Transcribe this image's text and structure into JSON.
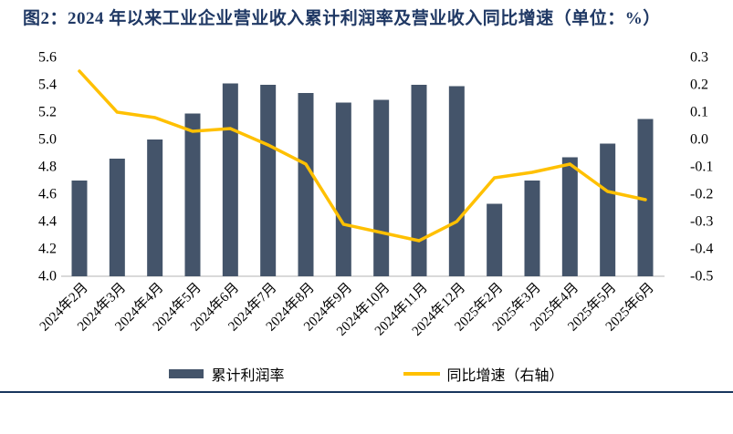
{
  "title": "图2：2024 年以来工业企业营业收入累计利润率及营业收入同比增速（单位：%）",
  "legend": {
    "bar_label": "累计利润率",
    "line_label": "同比增速（右轴）"
  },
  "colors": {
    "bar": "#44546A",
    "line": "#FFC000",
    "title_navy": "#1F3864",
    "axis_baseline": "#D9D9D9",
    "bottom_rule": "#17365D"
  },
  "chart_data": {
    "type": "combo-bar-line",
    "title": "2024 年以来工业企业营业收入累计利润率及营业收入同比增速",
    "unit": "%",
    "grid": false,
    "legend_position": "bottom",
    "categories": [
      "2024年2月",
      "2024年3月",
      "2024年4月",
      "2024年5月",
      "2024年6月",
      "2024年7月",
      "2024年8月",
      "2024年9月",
      "2024年10月",
      "2024年11月",
      "2024年12月",
      "2025年2月",
      "2025年3月",
      "2025年4月",
      "2025年5月",
      "2025年6月"
    ],
    "series": [
      {
        "name": "累计利润率",
        "type": "bar",
        "axis": "left",
        "color": "#44546A",
        "values": [
          4.7,
          4.86,
          5.0,
          5.19,
          5.41,
          5.4,
          5.34,
          5.27,
          5.29,
          5.4,
          5.39,
          4.53,
          4.7,
          4.87,
          4.97,
          5.15
        ]
      },
      {
        "name": "同比增速（右轴）",
        "type": "line",
        "axis": "right",
        "color": "#FFC000",
        "values": [
          0.25,
          0.1,
          0.08,
          0.03,
          0.04,
          -0.02,
          -0.09,
          -0.31,
          -0.34,
          -0.37,
          -0.3,
          -0.14,
          -0.12,
          -0.09,
          -0.19,
          -0.22
        ]
      }
    ],
    "left_axis": {
      "min": 4.0,
      "max": 5.6,
      "step": 0.2,
      "ticks": [
        "5.6",
        "5.4",
        "5.2",
        "5.0",
        "4.8",
        "4.6",
        "4.4",
        "4.2",
        "4.0"
      ]
    },
    "right_axis": {
      "min": -0.5,
      "max": 0.3,
      "step": 0.1,
      "ticks": [
        "0.3",
        "0.2",
        "0.1",
        "0.0",
        "-0.1",
        "-0.2",
        "-0.3",
        "-0.4",
        "-0.5"
      ]
    }
  }
}
